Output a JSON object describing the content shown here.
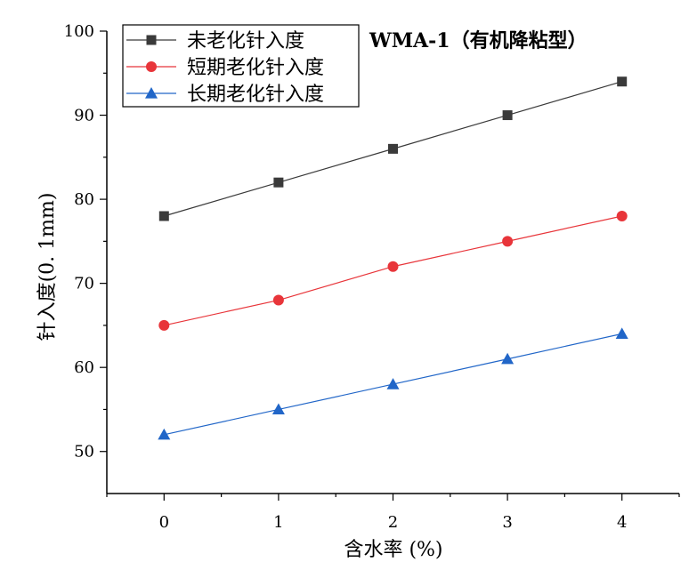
{
  "chart_data": {
    "type": "line",
    "title": "WMA-1（有机降粘型）",
    "xlabel": "含水率 (%)",
    "ylabel": "针入度(0. 1mm)",
    "x": [
      0,
      1,
      2,
      3,
      4
    ],
    "xlim": [
      -0.5,
      4.5
    ],
    "ylim": [
      45,
      100
    ],
    "xticks": [
      0,
      1,
      2,
      3,
      4
    ],
    "yticks": [
      50,
      60,
      70,
      80,
      90,
      100
    ],
    "x_tick_labels": [
      "0",
      "1",
      "2",
      "3",
      "4"
    ],
    "y_tick_labels": [
      "50",
      "60",
      "70",
      "80",
      "90",
      "100"
    ],
    "legend_position": "top-left",
    "grid": false,
    "series": [
      {
        "name": "未老化针入度",
        "values": [
          78,
          82,
          86,
          90,
          94
        ],
        "color": "#3a3a3a",
        "marker": "square"
      },
      {
        "name": "短期老化针入度",
        "values": [
          65,
          68,
          72,
          75,
          78
        ],
        "color": "#e8353a",
        "marker": "circle"
      },
      {
        "name": "长期老化针入度",
        "values": [
          52,
          55,
          58,
          61,
          64
        ],
        "color": "#2166c8",
        "marker": "triangle"
      }
    ]
  }
}
